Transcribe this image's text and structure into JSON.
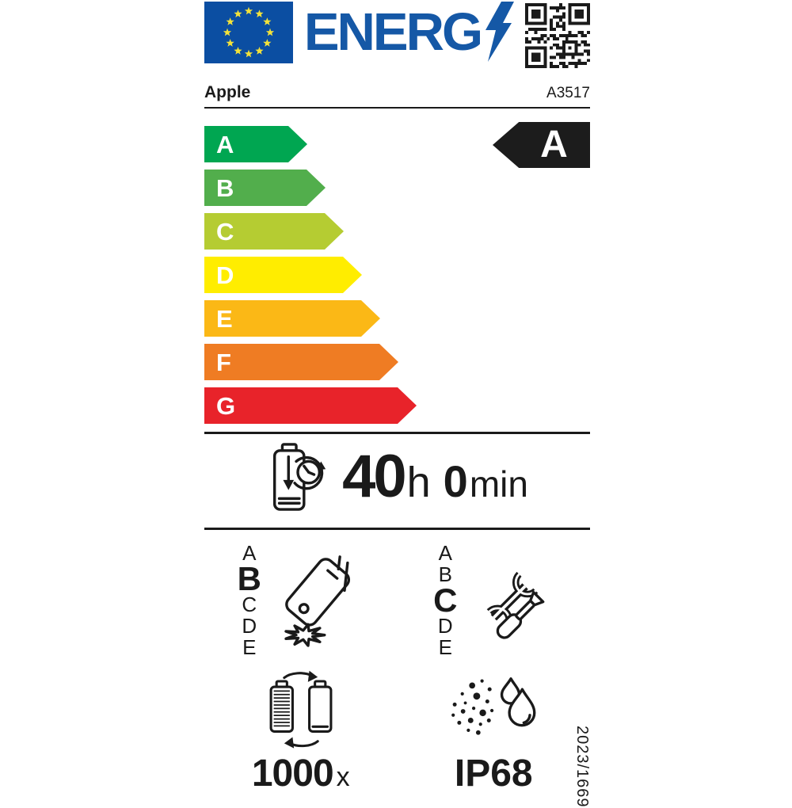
{
  "header": {
    "logo_text": "ENERG",
    "eu_flag": "eu-flag",
    "qr_label": "qr-code",
    "logo_color": "#1558a6",
    "flag_blue": "#0b4ea2",
    "star_yellow": "#f3e23a"
  },
  "brand": {
    "name": "Apple",
    "model": "A3517"
  },
  "efficiency": {
    "grades": [
      {
        "letter": "A",
        "color": "#00a651"
      },
      {
        "letter": "B",
        "color": "#52ae4c"
      },
      {
        "letter": "C",
        "color": "#b5cc32"
      },
      {
        "letter": "D",
        "color": "#ffed00"
      },
      {
        "letter": "E",
        "color": "#fbb816"
      },
      {
        "letter": "F",
        "color": "#ef7c23"
      },
      {
        "letter": "G",
        "color": "#e8232a"
      }
    ],
    "rating": "A",
    "rating_bg": "#1c1c1c"
  },
  "battery_life": {
    "hours": "40",
    "hours_unit": "h",
    "minutes": "0",
    "minutes_unit": "min"
  },
  "drop_resistance": {
    "scale": [
      "A",
      "B",
      "C",
      "D",
      "E"
    ],
    "rating": "B"
  },
  "repairability": {
    "scale": [
      "A",
      "B",
      "C",
      "D",
      "E"
    ],
    "rating": "C"
  },
  "battery_endurance": {
    "cycles": "1000",
    "unit": "x"
  },
  "ingress_protection": {
    "rating": "IP68"
  },
  "regulation_number": "2023/1669"
}
